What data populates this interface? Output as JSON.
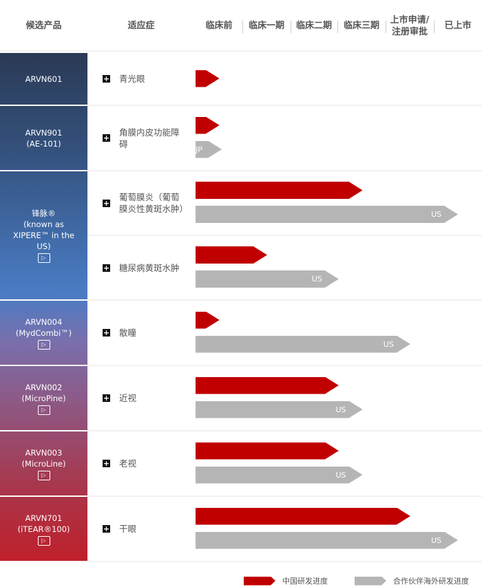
{
  "header": {
    "product": "候选产品",
    "indication": "适应症",
    "phases": [
      "临床前",
      "临床一期",
      "临床二期",
      "临床三期",
      "上市申请/\n注册审批",
      "已上市"
    ]
  },
  "colors": {
    "china": "#c00000",
    "partner": "#b5b5b5"
  },
  "products": [
    {
      "name": "ARVN601",
      "sub": "",
      "video": false
    },
    {
      "name": "ARVN901",
      "sub": "(AE-101)",
      "video": false
    },
    {
      "name": "锋脉®",
      "sub": "(known as XIPERE™ in the US)",
      "video": true
    },
    {
      "name": "ARVN004",
      "sub": "(MydCombi™)",
      "video": true
    },
    {
      "name": "ARVN002",
      "sub": "(MicroPine)",
      "video": true
    },
    {
      "name": "ARVN003",
      "sub": "(MicroLine)",
      "video": true
    },
    {
      "name": "ARVN701",
      "sub": "(iTEAR®100)",
      "video": true
    }
  ],
  "indications": [
    {
      "label": "青光眼",
      "china": 0.5,
      "partner": null,
      "partner_label": ""
    },
    {
      "label": "角膜内皮功能障碍",
      "china": 0.5,
      "partner": 0.55,
      "partner_label": "JP"
    },
    {
      "label": "葡萄膜炎（葡萄膜炎性黄斑水肿）",
      "china": 3.5,
      "partner": 5.5,
      "partner_label": "US"
    },
    {
      "label": "糖尿病黄斑水肿",
      "china": 1.5,
      "partner": 3.0,
      "partner_label": "US"
    },
    {
      "label": "散瞳",
      "china": 0.5,
      "partner": 4.5,
      "partner_label": "US"
    },
    {
      "label": "近视",
      "china": 3.0,
      "partner": 3.5,
      "partner_label": "US"
    },
    {
      "label": "老视",
      "china": 3.0,
      "partner": 3.5,
      "partner_label": "US"
    },
    {
      "label": "干眼",
      "china": 4.5,
      "partner": 5.5,
      "partner_label": "US"
    }
  ],
  "legend": {
    "china": "中国研发进度",
    "partner": "合作伙伴海外研发进度"
  }
}
